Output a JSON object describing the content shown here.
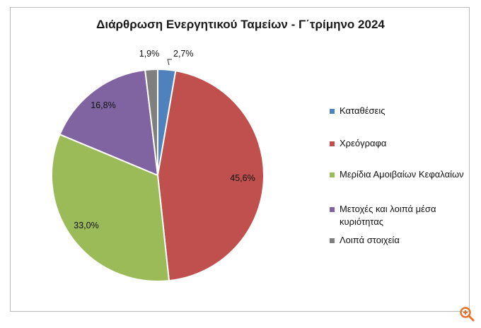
{
  "chart_data": {
    "type": "pie",
    "title": "Διάρθρωση Ενεργητικού Ταμείων - Γ΄τρίμηνο 2024",
    "slices": [
      {
        "name": "Καταθέσεις",
        "value": 2.7,
        "label": "2,7%",
        "color": "#4f81bd"
      },
      {
        "name": "Χρεόγραφα",
        "value": 45.6,
        "label": "45,6%",
        "color": "#c0504d"
      },
      {
        "name": "Μερίδια Αμοιβαίων Κεφαλαίων",
        "value": 33.0,
        "label": "33,0%",
        "color": "#9bbb59"
      },
      {
        "name": "Μετοχές και λοιπά μέσα κυριότητας",
        "value": 16.8,
        "label": "16,8%",
        "color": "#8064a2"
      },
      {
        "name": "Λοιπά στοιχεία",
        "value": 1.9,
        "label": "1,9%",
        "color": "#7f7f7f"
      }
    ],
    "legend_position": "right"
  },
  "badge": {
    "icon": "zoom-in-icon",
    "color": "#e8702a"
  }
}
